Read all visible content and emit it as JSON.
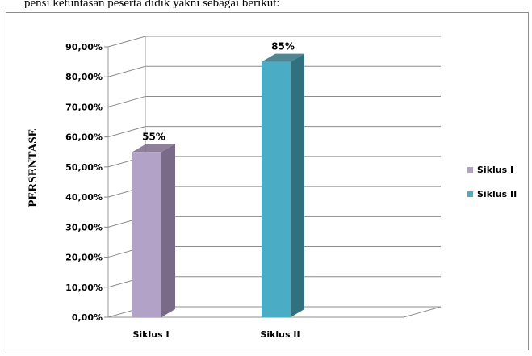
{
  "caption": "pensi ketuntasan peserta didik yakni sebagai berikut:",
  "chart_data": {
    "type": "bar",
    "title": "",
    "xlabel": "",
    "ylabel": "PERSENTASE",
    "ylim": [
      0,
      90
    ],
    "y_ticks": [
      "0,00%",
      "10,00%",
      "20,00%",
      "30,00%",
      "40,00%",
      "50,00%",
      "60,00%",
      "70,00%",
      "80,00%",
      "90,00%"
    ],
    "categories": [
      "Siklus I",
      "Siklus II"
    ],
    "series": [
      {
        "name": "Siklus I",
        "values": [
          55,
          null
        ],
        "labels": [
          "55%",
          ""
        ],
        "color": "#b3a2c7",
        "side_color": "#7a6a8a"
      },
      {
        "name": "Siklus II",
        "values": [
          null,
          85
        ],
        "labels": [
          "",
          "85%"
        ],
        "color": "#4bacc6",
        "side_color": "#31707f"
      }
    ],
    "grid": true,
    "three_d": true,
    "legend_position": "right"
  }
}
